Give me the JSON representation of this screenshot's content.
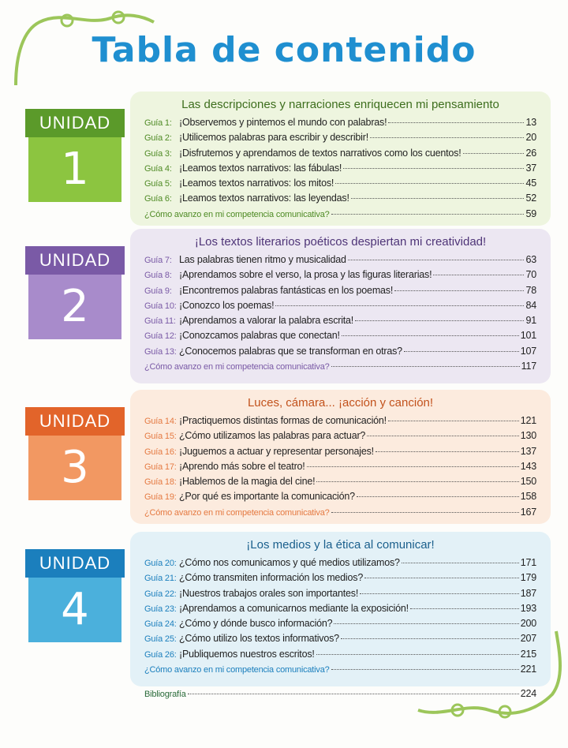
{
  "header": {
    "title": "Tabla de contenido"
  },
  "units": [
    {
      "label": "UNIDAD",
      "number": "1",
      "heading": "Las descripciones y narraciones enriquecen mi pensamiento",
      "items": [
        {
          "guide": "Guía 1:",
          "title": "¡Observemos y pintemos el mundo con palabras!",
          "page": 13
        },
        {
          "guide": "Guía 2:",
          "title": "¡Utilicemos palabras para escribir y describir!",
          "page": 20
        },
        {
          "guide": "Guía 3:",
          "title": "¡Disfrutemos y aprendamos de textos narrativos como los cuentos!",
          "page": 26
        },
        {
          "guide": "Guía 4:",
          "title": "¡Leamos textos narrativos: las fábulas!",
          "page": 37
        },
        {
          "guide": "Guía 5:",
          "title": "¡Leamos textos narrativos: los mitos!",
          "page": 45
        },
        {
          "guide": "Guía 6:",
          "title": "¡Leamos textos narrativos: las leyendas!",
          "page": 52
        }
      ],
      "closing": {
        "title": "¿Cómo avanzo en mi competencia comunicativa?",
        "page": 59
      }
    },
    {
      "label": "UNIDAD",
      "number": "2",
      "heading": "¡Los textos literarios poéticos despiertan mi creatividad!",
      "items": [
        {
          "guide": "Guía 7:",
          "title": "Las palabras tienen ritmo y musicalidad",
          "page": 63
        },
        {
          "guide": "Guía 8:",
          "title": "¡Aprendamos sobre el verso, la prosa y las figuras literarias!",
          "page": 70
        },
        {
          "guide": "Guía 9:",
          "title": "¡Encontremos palabras fantásticas en los poemas!",
          "page": 78
        },
        {
          "guide": "Guía 10:",
          "title": "¡Conozco los poemas!",
          "page": 84
        },
        {
          "guide": "Guía 11:",
          "title": "¡Aprendamos a valorar la palabra escrita!",
          "page": 91
        },
        {
          "guide": "Guía 12:",
          "title": "¡Conozcamos palabras que conectan!",
          "page": 101
        },
        {
          "guide": "Guía 13:",
          "title": "¿Conocemos palabras que se transforman en otras?",
          "page": 107
        }
      ],
      "closing": {
        "title": "¿Cómo avanzo en mi competencia comunicativa?",
        "page": 117
      }
    },
    {
      "label": "UNIDAD",
      "number": "3",
      "heading": "Luces, cámara... ¡acción y canción!",
      "items": [
        {
          "guide": "Guía 14:",
          "title": "¡Practiquemos distintas formas de comunicación!",
          "page": 121
        },
        {
          "guide": "Guía 15:",
          "title": "¿Cómo utilizamos las palabras para actuar?",
          "page": 130
        },
        {
          "guide": "Guía 16:",
          "title": "¡Juguemos a actuar y representar personajes!",
          "page": 137
        },
        {
          "guide": "Guía 17:",
          "title": "¡Aprendo más sobre el teatro!",
          "page": 143
        },
        {
          "guide": "Guía 18:",
          "title": "¡Hablemos de la magia del cine!",
          "page": 150
        },
        {
          "guide": "Guía 19:",
          "title": "¿Por qué es importante la comunicación?",
          "page": 158
        }
      ],
      "closing": {
        "title": "¿Cómo avanzo en mi competencia comunicativa?",
        "page": 167
      }
    },
    {
      "label": "UNIDAD",
      "number": "4",
      "heading": "¡Los medios y la ética al comunicar!",
      "items": [
        {
          "guide": "Guía 20:",
          "title": "¿Cómo nos comunicamos y qué medios utilizamos?",
          "page": 171
        },
        {
          "guide": "Guía 21:",
          "title": "¿Cómo transmiten información los medios?",
          "page": 179
        },
        {
          "guide": "Guía 22:",
          "title": "¡Nuestros trabajos orales son importantes!",
          "page": 187
        },
        {
          "guide": "Guía 23:",
          "title": "¡Aprendamos a comunicarnos mediante la exposición!",
          "page": 193
        },
        {
          "guide": "Guía 24:",
          "title": "¿Cómo y dónde busco información?",
          "page": 200
        },
        {
          "guide": "Guía 25:",
          "title": "¿Cómo utilizo los textos informativos?",
          "page": 207
        },
        {
          "guide": "Guía 26:",
          "title": "¡Publiquemos nuestros escritos!",
          "page": 215
        }
      ],
      "closing": {
        "title": "¿Cómo avanzo en mi competencia comunicativa?",
        "page": 221
      }
    }
  ],
  "bibliography": {
    "title": "Bibliografía",
    "page": 224
  }
}
